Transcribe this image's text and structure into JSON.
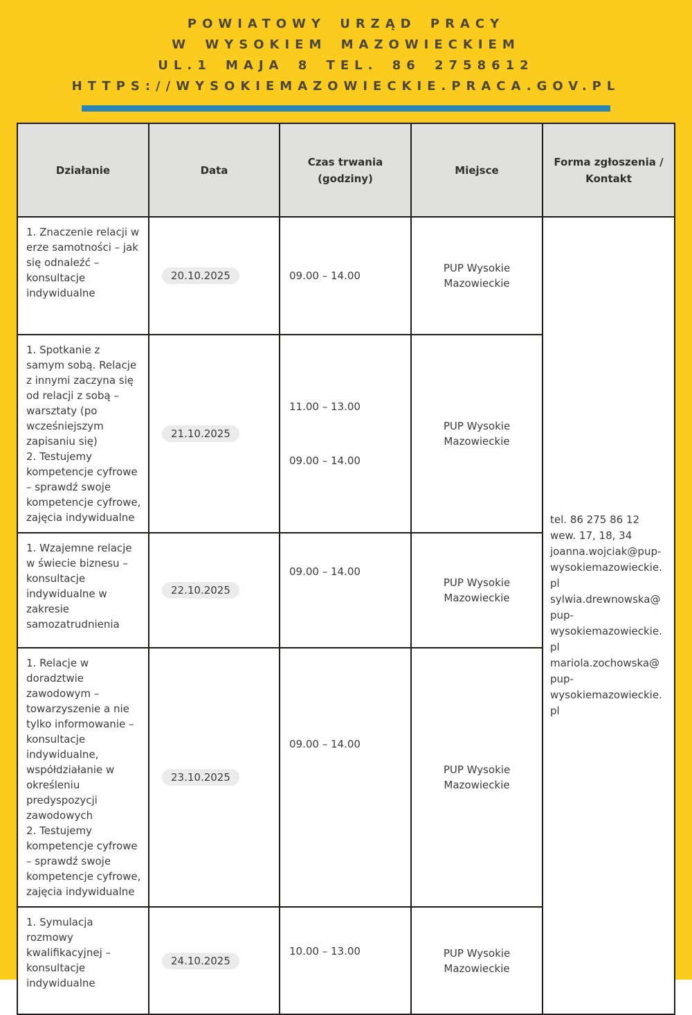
{
  "page": {
    "background_color": "#FBCB1E",
    "divider_color": "#2B86B6",
    "header_text_color": "#4C463D"
  },
  "header": {
    "line1": "POWIATOWY URZĄD PRACY",
    "line2": "W WYSOKIEM MAZOWIECKIEM",
    "line3": "UL.1 MAJA 8 TEL. 86 2758612",
    "line4": "HTTPS://WYSOKIEMAZOWIECKIE.PRACA.GOV.PL"
  },
  "table": {
    "columns": {
      "dzialanie": "Działanie",
      "data": "Data",
      "czas": "Czas trwania (godziny)",
      "miejsce": "Miejsce",
      "kontakt": "Forma zgłoszenia / Kontakt"
    },
    "rows": [
      {
        "dzialanie": [
          "1. Znaczenie relacji w erze samotności – jak się odnaleźć – konsultacje indywidualne"
        ],
        "data": "20.10.2025",
        "czas": [
          "09.00 – 14.00"
        ],
        "miejsce": "PUP Wysokie Mazowieckie"
      },
      {
        "dzialanie": [
          "1. Spotkanie z samym sobą. Relacje z innymi zaczyna się od relacji z sobą – warsztaty (po wcześniejszym zapisaniu się)",
          "2. Testujemy kompetencje cyfrowe – sprawdź swoje kompetencje cyfrowe, zajęcia indywidualne"
        ],
        "data": "21.10.2025",
        "czas": [
          "11.00 – 13.00",
          "09.00 – 14.00"
        ],
        "miejsce": "PUP Wysokie Mazowieckie"
      },
      {
        "dzialanie": [
          "1. Wzajemne relacje w świecie biznesu – konsultacje indywidualne w zakresie samozatrudnienia"
        ],
        "data": "22.10.2025",
        "czas": [
          "09.00 – 14.00"
        ],
        "miejsce": "PUP Wysokie Mazowieckie"
      },
      {
        "dzialanie": [
          "1. Relacje w doradztwie zawodowym – towarzyszenie a nie tylko informowanie – konsultacje indywidualne, współdziałanie w określeniu predyspozycji zawodowych",
          "2. Testujemy kompetencje cyfrowe – sprawdź swoje kompetencje cyfrowe, zajęcia indywidualne"
        ],
        "data": "23.10.2025",
        "czas": [
          "09.00 – 14.00"
        ],
        "miejsce": "PUP Wysokie Mazowieckie"
      },
      {
        "dzialanie": [
          "1. Symulacja rozmowy kwalifikacyjnej – konsultacje indywidualne"
        ],
        "data": "24.10.2025",
        "czas": [
          "10.00 – 13.00"
        ],
        "miejsce": "PUP Wysokie Mazowieckie"
      }
    ],
    "kontakt": {
      "line1": "tel. 86 275 86 12 wew. 17, 18, 34",
      "email1": "joanna.wojciak@pup-wysokiemazowieckie.pl",
      "email2": "sylwia.drewnowska@pup-wysokiemazowieckie.pl",
      "email3": "mariola.zochowska@pup-wysokiemazowieckie.pl"
    }
  }
}
